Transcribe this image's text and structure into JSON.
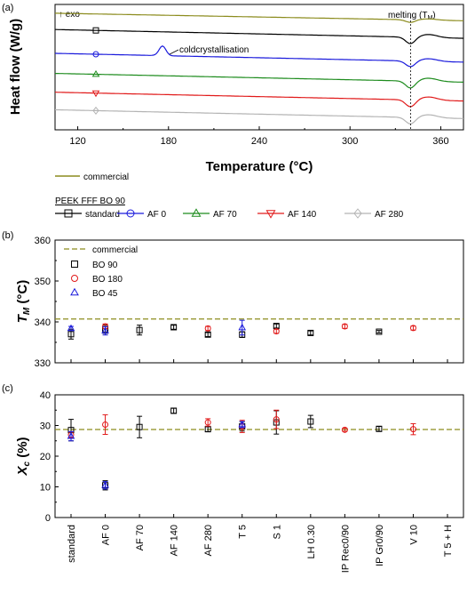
{
  "chart_data": [
    {
      "type": "line",
      "panel_label": "(a)",
      "title": "",
      "xlabel": "Temperature (°C)",
      "ylabel": "Heat flow (W/g)",
      "xlim": [
        105,
        375
      ],
      "xticks": [
        "120",
        "180",
        "240",
        "300",
        "360"
      ],
      "xtick_values": [
        120,
        180,
        240,
        300,
        360
      ],
      "annotations": {
        "exo": "↑ exo",
        "melting": "melting (T",
        "melting_sub": "M",
        "melting_close": ")",
        "coldcryst": "coldcrystallisation"
      },
      "melting_line_x": 340,
      "legend_group_title": "PEEK FFF BO 90",
      "series": [
        {
          "name": "commercial",
          "color": "#8c8c1e",
          "marker": "none",
          "baseline": 0.93,
          "dip": 0.12,
          "slope": 0.06,
          "peak": 0
        },
        {
          "name": "standard",
          "color": "#000000",
          "marker": "square",
          "baseline": 0.8,
          "dip": 0.3,
          "slope": 0.07,
          "peak": 0
        },
        {
          "name": "AF 0",
          "color": "#1a1adc",
          "marker": "circle",
          "baseline": 0.61,
          "dip": 0.26,
          "slope": 0.07,
          "peak": 0.55
        },
        {
          "name": "AF  70",
          "color": "#1e8c1e",
          "marker": "triangle-up",
          "baseline": 0.45,
          "dip": 0.32,
          "slope": 0.07,
          "peak": 0
        },
        {
          "name": "AF 140",
          "color": "#e11a1a",
          "marker": "triangle-down",
          "baseline": 0.3,
          "dip": 0.32,
          "slope": 0.07,
          "peak": 0
        },
        {
          "name": "AF 280",
          "color": "#b4b4b4",
          "marker": "diamond",
          "baseline": 0.16,
          "dip": 0.3,
          "slope": 0.07,
          "peak": 0
        }
      ]
    },
    {
      "type": "scatter",
      "panel_label": "(b)",
      "ylabel": "T",
      "ylabel_sub": "M",
      "ylabel_unit": " (°C)",
      "ylim": [
        330,
        360
      ],
      "yticks": [
        330,
        340,
        350,
        360
      ],
      "reference": {
        "name": "commercial",
        "value": 340.7,
        "color": "#8c8c1e"
      },
      "series": [
        {
          "name": "BO 90",
          "color": "#000000",
          "marker": "square",
          "points": [
            [
              0,
              337.0,
              1.2
            ],
            [
              1,
              338.2,
              1.0
            ],
            [
              2,
              338.0,
              1.2
            ],
            [
              3,
              338.7,
              0.5
            ],
            [
              4,
              336.9,
              0.5
            ],
            [
              5,
              336.9,
              0.7
            ],
            [
              6,
              339.0,
              0.5
            ],
            [
              7,
              337.3,
              0.5
            ],
            [
              9,
              337.6,
              0.3
            ]
          ]
        },
        {
          "name": "BO 180",
          "color": "#e11a1a",
          "marker": "circle",
          "points": [
            [
              1,
              338.9,
              0.6
            ],
            [
              4,
              338.4,
              0.5
            ],
            [
              6,
              337.7,
              0.5
            ],
            [
              8,
              338.9,
              0.5
            ],
            [
              10,
              338.5,
              0.5
            ]
          ]
        },
        {
          "name": "BO 45",
          "color": "#1a1adc",
          "marker": "triangle-up",
          "points": [
            [
              0,
              338.4,
              0.5
            ],
            [
              1,
              337.8,
              1.0
            ],
            [
              5,
              338.6,
              1.8
            ]
          ]
        }
      ]
    },
    {
      "type": "scatter",
      "panel_label": "(c)",
      "ylabel": "X",
      "ylabel_sub": "c",
      "ylabel_unit": " (%)",
      "ylim": [
        0,
        40
      ],
      "yticks": [
        0,
        10,
        20,
        30,
        40
      ],
      "categories": [
        "standard",
        "AF 0",
        "AF 70",
        "AF 140",
        "AF 280",
        "T 5",
        "S 1",
        "LH 0.30",
        "IP Rec0/90",
        "IP Gr0/90",
        "V 10",
        "T 5 + H"
      ],
      "reference": {
        "name": "commercial",
        "value": 28.7,
        "color": "#8c8c1e"
      },
      "series": [
        {
          "name": "BO 90",
          "color": "#000000",
          "marker": "square",
          "points": [
            [
              0,
              28.5,
              3.5
            ],
            [
              1,
              10.5,
              1.5
            ],
            [
              2,
              29.5,
              3.5
            ],
            [
              3,
              34.8,
              0.8
            ],
            [
              4,
              28.8,
              0.8
            ],
            [
              5,
              29.7,
              1.5
            ],
            [
              6,
              31.0,
              3.8
            ],
            [
              7,
              31.3,
              2.0
            ],
            [
              9,
              28.9,
              0.8
            ]
          ]
        },
        {
          "name": "BO 180",
          "color": "#e11a1a",
          "marker": "circle",
          "points": [
            [
              0,
              27.0,
              1.0
            ],
            [
              1,
              30.3,
              3.2
            ],
            [
              4,
              31.0,
              1.2
            ],
            [
              5,
              29.7,
              2.0
            ],
            [
              6,
              32.0,
              3.0
            ],
            [
              8,
              28.6,
              0.5
            ],
            [
              10,
              28.8,
              1.8
            ]
          ]
        },
        {
          "name": "BO 45",
          "color": "#1a1adc",
          "marker": "triangle-up",
          "points": [
            [
              0,
              26.5,
              1.5
            ],
            [
              1,
              10.5,
              1.2
            ],
            [
              5,
              30.3,
              1.0
            ]
          ]
        }
      ]
    }
  ]
}
